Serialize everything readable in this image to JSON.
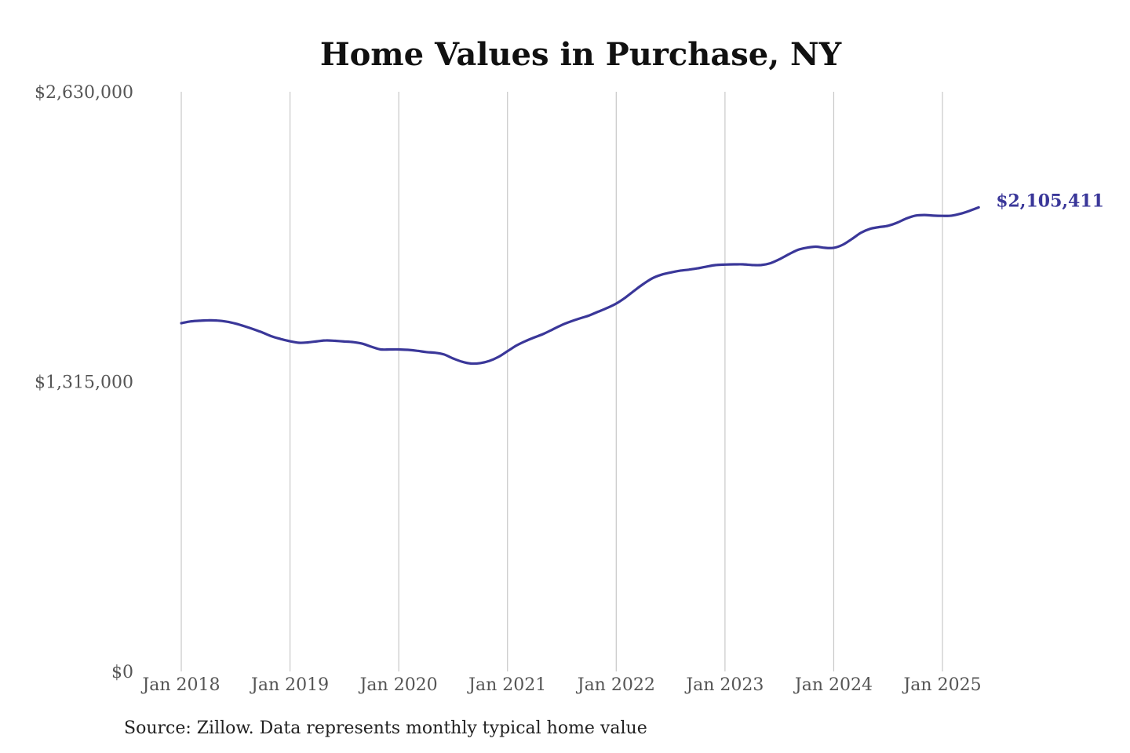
{
  "colors": {
    "line": "#3a3799",
    "grid": "#c8c8c8",
    "text": "#555555",
    "title": "#111111"
  },
  "chart_data": {
    "type": "line",
    "title": "Home Values in Purchase, NY",
    "xlabel": "",
    "ylabel": "",
    "x_ticks": [
      "Jan 2018",
      "Jan 2019",
      "Jan 2020",
      "Jan 2021",
      "Jan 2022",
      "Jan 2023",
      "Jan 2024",
      "Jan 2025"
    ],
    "y_ticks": [
      "$0",
      "$1,315,000",
      "$2,630,000"
    ],
    "ylim": [
      0,
      2630000
    ],
    "xlim": [
      "2018-01",
      "2025-05"
    ],
    "grid": "vertical",
    "end_label": "$2,105,411",
    "series": [
      {
        "color": "#3a3799",
        "points": [
          [
            "2018-01",
            1580000
          ],
          [
            "2018-02",
            1588000
          ],
          [
            "2018-03",
            1591000
          ],
          [
            "2018-04",
            1593000
          ],
          [
            "2018-05",
            1592000
          ],
          [
            "2018-06",
            1587000
          ],
          [
            "2018-07",
            1578000
          ],
          [
            "2018-08",
            1566000
          ],
          [
            "2018-09",
            1552000
          ],
          [
            "2018-10",
            1537000
          ],
          [
            "2018-11",
            1520000
          ],
          [
            "2018-12",
            1508000
          ],
          [
            "2019-01",
            1498000
          ],
          [
            "2019-02",
            1491000
          ],
          [
            "2019-03",
            1493000
          ],
          [
            "2019-04",
            1498000
          ],
          [
            "2019-05",
            1502000
          ],
          [
            "2019-06",
            1500000
          ],
          [
            "2019-07",
            1497000
          ],
          [
            "2019-08",
            1494000
          ],
          [
            "2019-09",
            1487000
          ],
          [
            "2019-10",
            1473000
          ],
          [
            "2019-11",
            1461000
          ],
          [
            "2019-12",
            1461000
          ],
          [
            "2020-01",
            1461000
          ],
          [
            "2020-02",
            1459000
          ],
          [
            "2020-03",
            1455000
          ],
          [
            "2020-04",
            1449000
          ],
          [
            "2020-05",
            1446000
          ],
          [
            "2020-06",
            1438000
          ],
          [
            "2020-07",
            1420000
          ],
          [
            "2020-08",
            1405000
          ],
          [
            "2020-09",
            1397000
          ],
          [
            "2020-10",
            1399000
          ],
          [
            "2020-11",
            1409000
          ],
          [
            "2020-12",
            1427000
          ],
          [
            "2021-01",
            1453000
          ],
          [
            "2021-02",
            1479000
          ],
          [
            "2021-03",
            1499000
          ],
          [
            "2021-04",
            1516000
          ],
          [
            "2021-05",
            1532000
          ],
          [
            "2021-06",
            1552000
          ],
          [
            "2021-07",
            1572000
          ],
          [
            "2021-08",
            1588000
          ],
          [
            "2021-09",
            1602000
          ],
          [
            "2021-10",
            1615000
          ],
          [
            "2021-11",
            1632000
          ],
          [
            "2021-12",
            1649000
          ],
          [
            "2022-01",
            1669000
          ],
          [
            "2022-02",
            1696000
          ],
          [
            "2022-03",
            1728000
          ],
          [
            "2022-04",
            1758000
          ],
          [
            "2022-05",
            1784000
          ],
          [
            "2022-06",
            1800000
          ],
          [
            "2022-07",
            1810000
          ],
          [
            "2022-08",
            1818000
          ],
          [
            "2022-09",
            1823000
          ],
          [
            "2022-10",
            1829000
          ],
          [
            "2022-11",
            1837000
          ],
          [
            "2022-12",
            1844000
          ],
          [
            "2023-01",
            1846000
          ],
          [
            "2023-02",
            1847000
          ],
          [
            "2023-03",
            1847000
          ],
          [
            "2023-04",
            1844000
          ],
          [
            "2023-05",
            1844000
          ],
          [
            "2023-06",
            1852000
          ],
          [
            "2023-07",
            1870000
          ],
          [
            "2023-08",
            1892000
          ],
          [
            "2023-09",
            1912000
          ],
          [
            "2023-10",
            1922000
          ],
          [
            "2023-11",
            1927000
          ],
          [
            "2023-12",
            1922000
          ],
          [
            "2024-01",
            1922000
          ],
          [
            "2024-02",
            1936000
          ],
          [
            "2024-03",
            1962000
          ],
          [
            "2024-04",
            1990000
          ],
          [
            "2024-05",
            2008000
          ],
          [
            "2024-06",
            2016000
          ],
          [
            "2024-07",
            2022000
          ],
          [
            "2024-08",
            2036000
          ],
          [
            "2024-09",
            2055000
          ],
          [
            "2024-10",
            2068000
          ],
          [
            "2024-11",
            2071000
          ],
          [
            "2024-12",
            2068000
          ],
          [
            "2025-01",
            2067000
          ],
          [
            "2025-02",
            2068000
          ],
          [
            "2025-03",
            2077000
          ],
          [
            "2025-04",
            2090000
          ],
          [
            "2025-05",
            2105411
          ]
        ]
      }
    ]
  },
  "source": "Source: Zillow. Data represents monthly typical home value"
}
